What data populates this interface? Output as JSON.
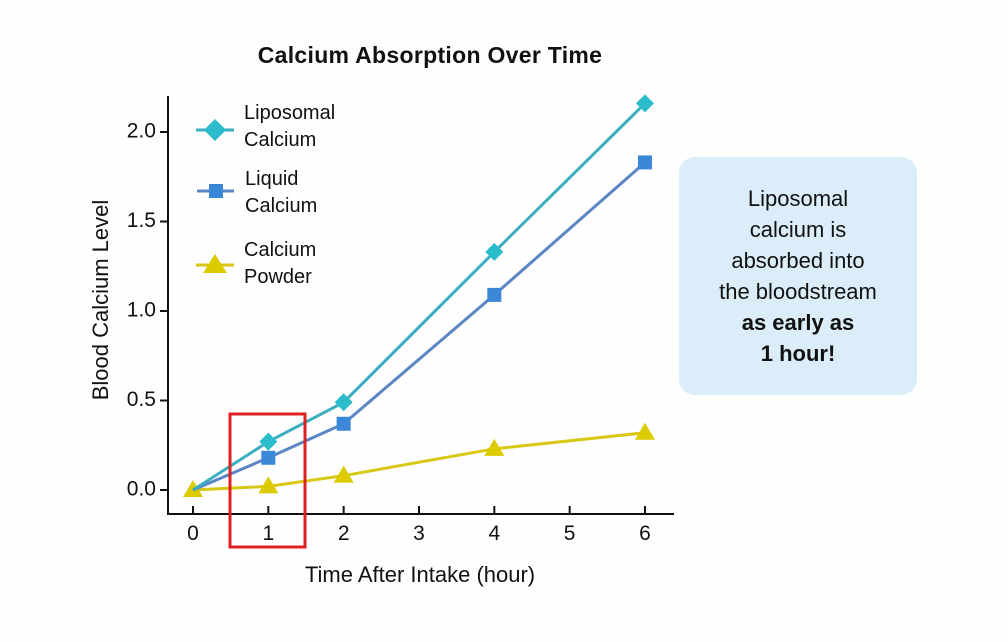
{
  "chart_data": {
    "type": "line",
    "title": "Calcium Absorption Over Time",
    "xlabel": "Time After Intake (hour)",
    "ylabel": "Blood Calcium Level",
    "x": [
      0,
      1,
      2,
      4,
      6
    ],
    "xticks": [
      "0",
      "1",
      "2",
      "3",
      "4",
      "5",
      "6"
    ],
    "yticks": [
      "0.0",
      "0.5",
      "1.0",
      "1.5",
      "2.0"
    ],
    "xlim": [
      -0.3,
      6.4
    ],
    "ylim": [
      -0.07,
      2.2
    ],
    "grid": false,
    "legend_position": "upper left",
    "series": [
      {
        "name": "Liposomal Calcium",
        "marker": "diamond",
        "color": "#2bbccc",
        "line_color": "#3aaec0",
        "values": [
          0.0,
          0.27,
          0.49,
          1.33,
          2.16
        ]
      },
      {
        "name": "Liquid Calcium",
        "marker": "square",
        "color": "#3b88d8",
        "line_color": "#5a86c4",
        "values": [
          0.0,
          0.18,
          0.37,
          1.09,
          1.83
        ]
      },
      {
        "name": "Calcium Powder",
        "marker": "triangle",
        "color": "#dccb00",
        "line_color": "#d8c814",
        "values": [
          0.0,
          0.02,
          0.08,
          0.23,
          0.32
        ]
      }
    ],
    "annotations": [
      {
        "type": "highlight-box",
        "x_center": 1,
        "color": "#e02020"
      },
      {
        "type": "callout",
        "text": "Liposomal calcium is absorbed into the bloodstream as early as 1 hour!"
      }
    ]
  },
  "legend": {
    "items": [
      {
        "line1": "Liposomal",
        "line2": "Calcium"
      },
      {
        "line1": "Liquid",
        "line2": "Calcium"
      },
      {
        "line1": "Calcium",
        "line2": "Powder"
      }
    ]
  },
  "callout": {
    "lines": [
      "Liposomal",
      "calcium is",
      "absorbed into",
      "the bloodstream"
    ],
    "bold_lines": [
      "as early as",
      "1 hour!"
    ],
    "background": "#daedf8"
  }
}
